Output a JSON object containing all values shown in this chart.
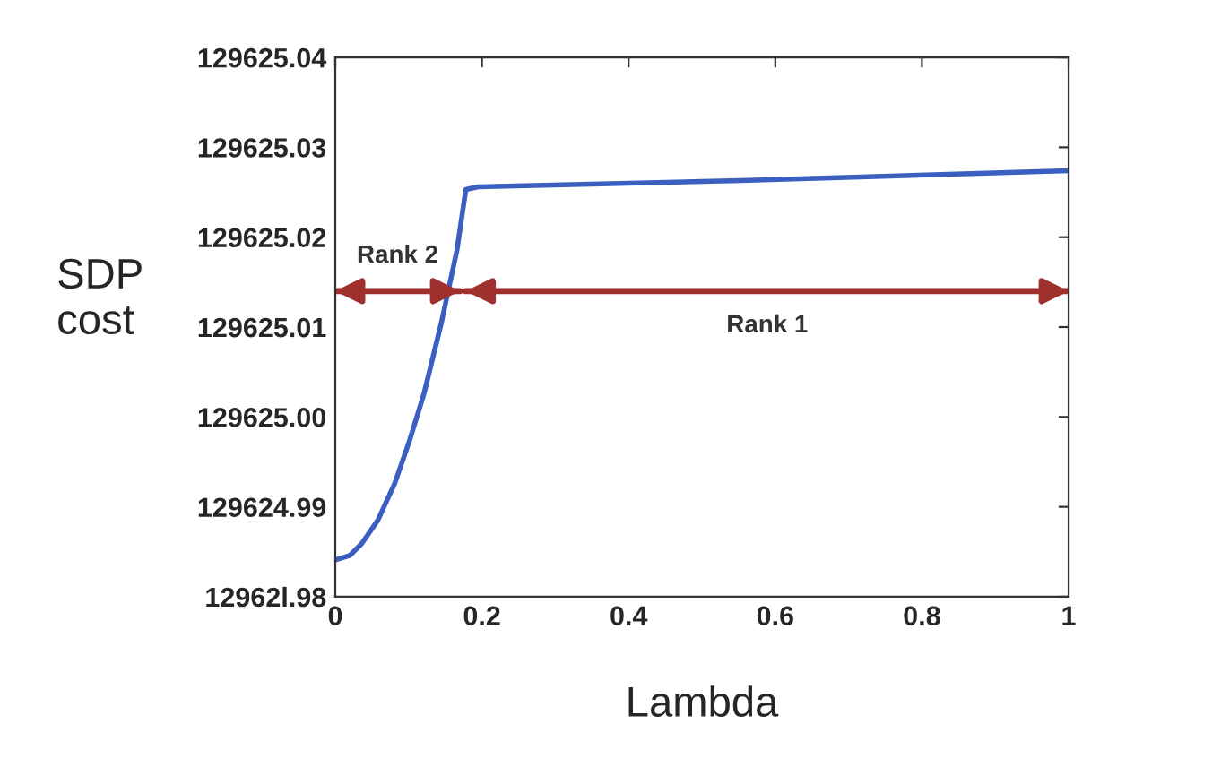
{
  "chart_data": {
    "type": "line",
    "xlabel": "Lambda",
    "ylabel": "SDP\ncost",
    "series": [
      {
        "color": "#3a5fc0",
        "x": [
          0,
          0.02,
          0.036,
          0.058,
          0.081,
          0.101,
          0.121,
          0.145,
          0.166,
          0.178,
          0.195,
          0.553,
          1
        ],
        "values": [
          129624.9841,
          129624.9846,
          129624.9859,
          129624.9885,
          129624.9926,
          129624.9973,
          129625.0026,
          129625.0106,
          129625.0186,
          129625.0253,
          129625.0256,
          129625.0263,
          129625.0274
        ]
      },
      {
        "color": "#a0302e",
        "x": [
          0,
          0.17
        ],
        "values": [
          129625.014,
          129625.014
        ]
      },
      {
        "color": "#a0302e",
        "x": [
          0.178,
          1
        ],
        "values": [
          129625.014,
          129625.014
        ]
      }
    ],
    "xlim": [
      0,
      1
    ],
    "xticks": [
      0,
      0.2,
      0.4,
      0.6,
      0.8,
      1
    ],
    "ylim": [
      129624.98,
      129625.04
    ],
    "yticks": [
      {
        "value": 129624.98,
        "label": "12962l.98"
      },
      {
        "value": 129624.99,
        "label": "129624.99"
      },
      {
        "value": 129625.0,
        "label": "129625.00"
      },
      {
        "value": 129625.01,
        "label": "129625.01"
      },
      {
        "value": 129625.02,
        "label": "129625.02"
      },
      {
        "value": 129625.03,
        "label": "129625.03"
      },
      {
        "value": 129625.04,
        "label": "129625.04"
      }
    ],
    "annotations": [
      "Rank 2",
      "Rank 1"
    ],
    "grid": false,
    "legend": false,
    "marker": "none",
    "line_style": "solid"
  }
}
